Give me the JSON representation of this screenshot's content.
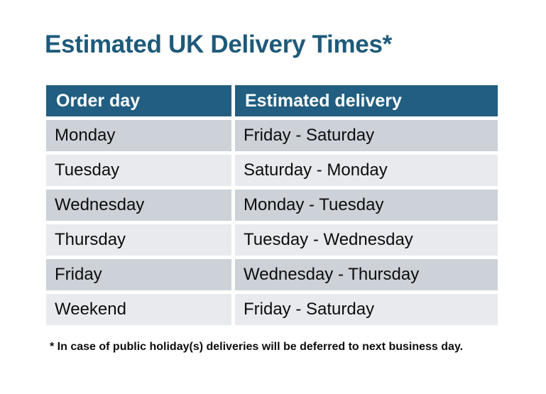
{
  "title": "Estimated UK Delivery Times*",
  "colors": {
    "background": "#ffffff",
    "title": "#1e5a7a",
    "header_bg": "#215e81",
    "header_text": "#ffffff",
    "row_dark": "#cdd1d8",
    "row_light": "#e8eaee",
    "cell_text": "#0d0d0d",
    "footnote_text": "#0d0d0d"
  },
  "table": {
    "headers": [
      "Order day",
      "Estimated delivery"
    ],
    "rows": [
      {
        "order_day": "Monday",
        "estimated_delivery": "Friday - Saturday"
      },
      {
        "order_day": "Tuesday",
        "estimated_delivery": "Saturday - Monday"
      },
      {
        "order_day": "Wednesday",
        "estimated_delivery": "Monday - Tuesday"
      },
      {
        "order_day": "Thursday",
        "estimated_delivery": "Tuesday - Wednesday"
      },
      {
        "order_day": "Friday",
        "estimated_delivery": "Wednesday - Thursday"
      },
      {
        "order_day": "Weekend",
        "estimated_delivery": "Friday - Saturday"
      }
    ]
  },
  "footnote": "* In case of public holiday(s) deliveries will be deferred to next business day."
}
